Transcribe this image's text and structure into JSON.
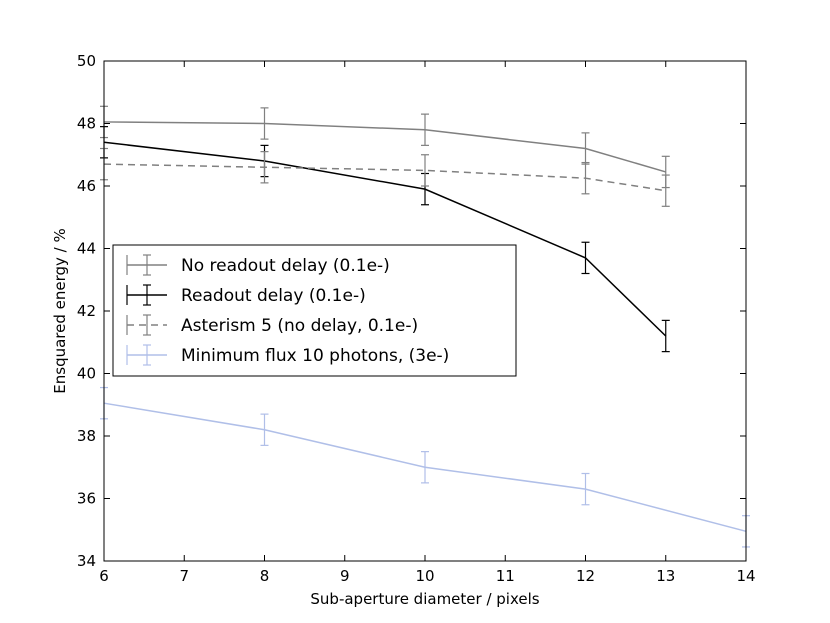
{
  "chart_data": {
    "type": "line",
    "title": "",
    "xlabel": "Sub-aperture diameter / pixels",
    "ylabel": "Ensquared energy / %",
    "xlim": [
      6,
      14
    ],
    "ylim": [
      34,
      50
    ],
    "xticks": [
      6,
      7,
      8,
      9,
      10,
      11,
      12,
      13,
      14
    ],
    "yticks": [
      34,
      36,
      38,
      40,
      42,
      44,
      46,
      48,
      50
    ],
    "xtick_labels": [
      "6",
      "7",
      "8",
      "9",
      "10",
      "11",
      "12",
      "13",
      "14"
    ],
    "ytick_labels": [
      "34",
      "36",
      "38",
      "40",
      "42",
      "44",
      "46",
      "48",
      "50"
    ],
    "grid": false,
    "legend_position": "center-left",
    "series": [
      {
        "name": "No readout delay (0.1e-)",
        "color": "#808080",
        "dash": "solid",
        "x": [
          6,
          8,
          10,
          12,
          13
        ],
        "y": [
          48.05,
          48.0,
          47.8,
          47.2,
          46.45
        ],
        "yerr": [
          0.5,
          0.5,
          0.5,
          0.5,
          0.5
        ]
      },
      {
        "name": "Readout delay (0.1e-)",
        "color": "#000000",
        "dash": "solid",
        "x": [
          6,
          8,
          10,
          12,
          13
        ],
        "y": [
          47.4,
          46.8,
          45.9,
          43.7,
          41.2
        ],
        "yerr": [
          0.5,
          0.5,
          0.5,
          0.5,
          0.5
        ]
      },
      {
        "name": "Asterism 5 (no delay, 0.1e-)",
        "color": "#808080",
        "dash": "dashed",
        "x": [
          6,
          8,
          10,
          12,
          13
        ],
        "y": [
          46.7,
          46.6,
          46.5,
          46.25,
          45.85
        ],
        "yerr": [
          0.5,
          0.5,
          0.5,
          0.5,
          0.5
        ]
      },
      {
        "name": "Minimum flux 10 photons, (3e-)",
        "color": "#b0bfe8",
        "dash": "solid",
        "x": [
          6,
          8,
          10,
          12,
          14
        ],
        "y": [
          39.05,
          38.2,
          37.0,
          36.3,
          34.95
        ],
        "yerr": [
          0.5,
          0.5,
          0.5,
          0.5,
          0.5
        ]
      }
    ]
  }
}
